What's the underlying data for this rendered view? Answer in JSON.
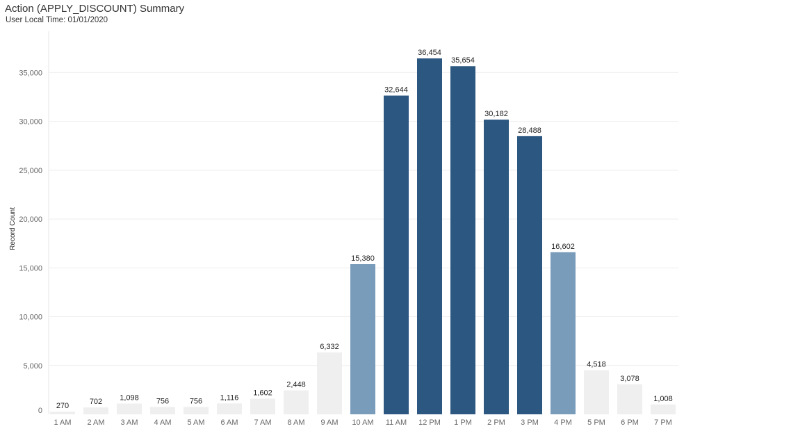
{
  "header": {
    "title": "Action (APPLY_DISCOUNT) Summary",
    "subtitle": "User Local Time: 01/01/2020"
  },
  "colors": {
    "low": "#efefef",
    "mid": "#7a9cbb",
    "high": "#2b5781",
    "grid": "#eeeeee"
  },
  "chart_data": {
    "type": "bar",
    "title": "Action (APPLY_DISCOUNT) Summary",
    "subtitle": "User Local Time: 01/01/2020",
    "xlabel": "",
    "ylabel": "Record Count",
    "ylim": [
      0,
      38500
    ],
    "yticks": [
      0,
      5000,
      10000,
      15000,
      20000,
      25000,
      30000,
      35000
    ],
    "ytick_labels": [
      "0",
      "5,000",
      "10,000",
      "15,000",
      "20,000",
      "25,000",
      "30,000",
      "35,000"
    ],
    "grid": true,
    "categories": [
      "1 AM",
      "2 AM",
      "3 AM",
      "4 AM",
      "5 AM",
      "6 AM",
      "7 AM",
      "8 AM",
      "9 AM",
      "10 AM",
      "11 AM",
      "12 PM",
      "1 PM",
      "2 PM",
      "3 PM",
      "4 PM",
      "5 PM",
      "6 PM",
      "7 PM"
    ],
    "values": [
      270,
      702,
      1098,
      756,
      756,
      1116,
      1602,
      2448,
      6332,
      15380,
      32644,
      36454,
      35654,
      30182,
      28488,
      16602,
      4518,
      3078,
      1008
    ],
    "value_labels": [
      "270",
      "702",
      "1,098",
      "756",
      "756",
      "1,116",
      "1,602",
      "2,448",
      "6,332",
      "15,380",
      "32,644",
      "36,454",
      "35,654",
      "30,182",
      "28,488",
      "16,602",
      "4,518",
      "3,078",
      "1,008"
    ],
    "color_levels": [
      "low",
      "low",
      "low",
      "low",
      "low",
      "low",
      "low",
      "low",
      "low",
      "mid",
      "high",
      "high",
      "high",
      "high",
      "high",
      "mid",
      "low",
      "low",
      "low"
    ]
  }
}
